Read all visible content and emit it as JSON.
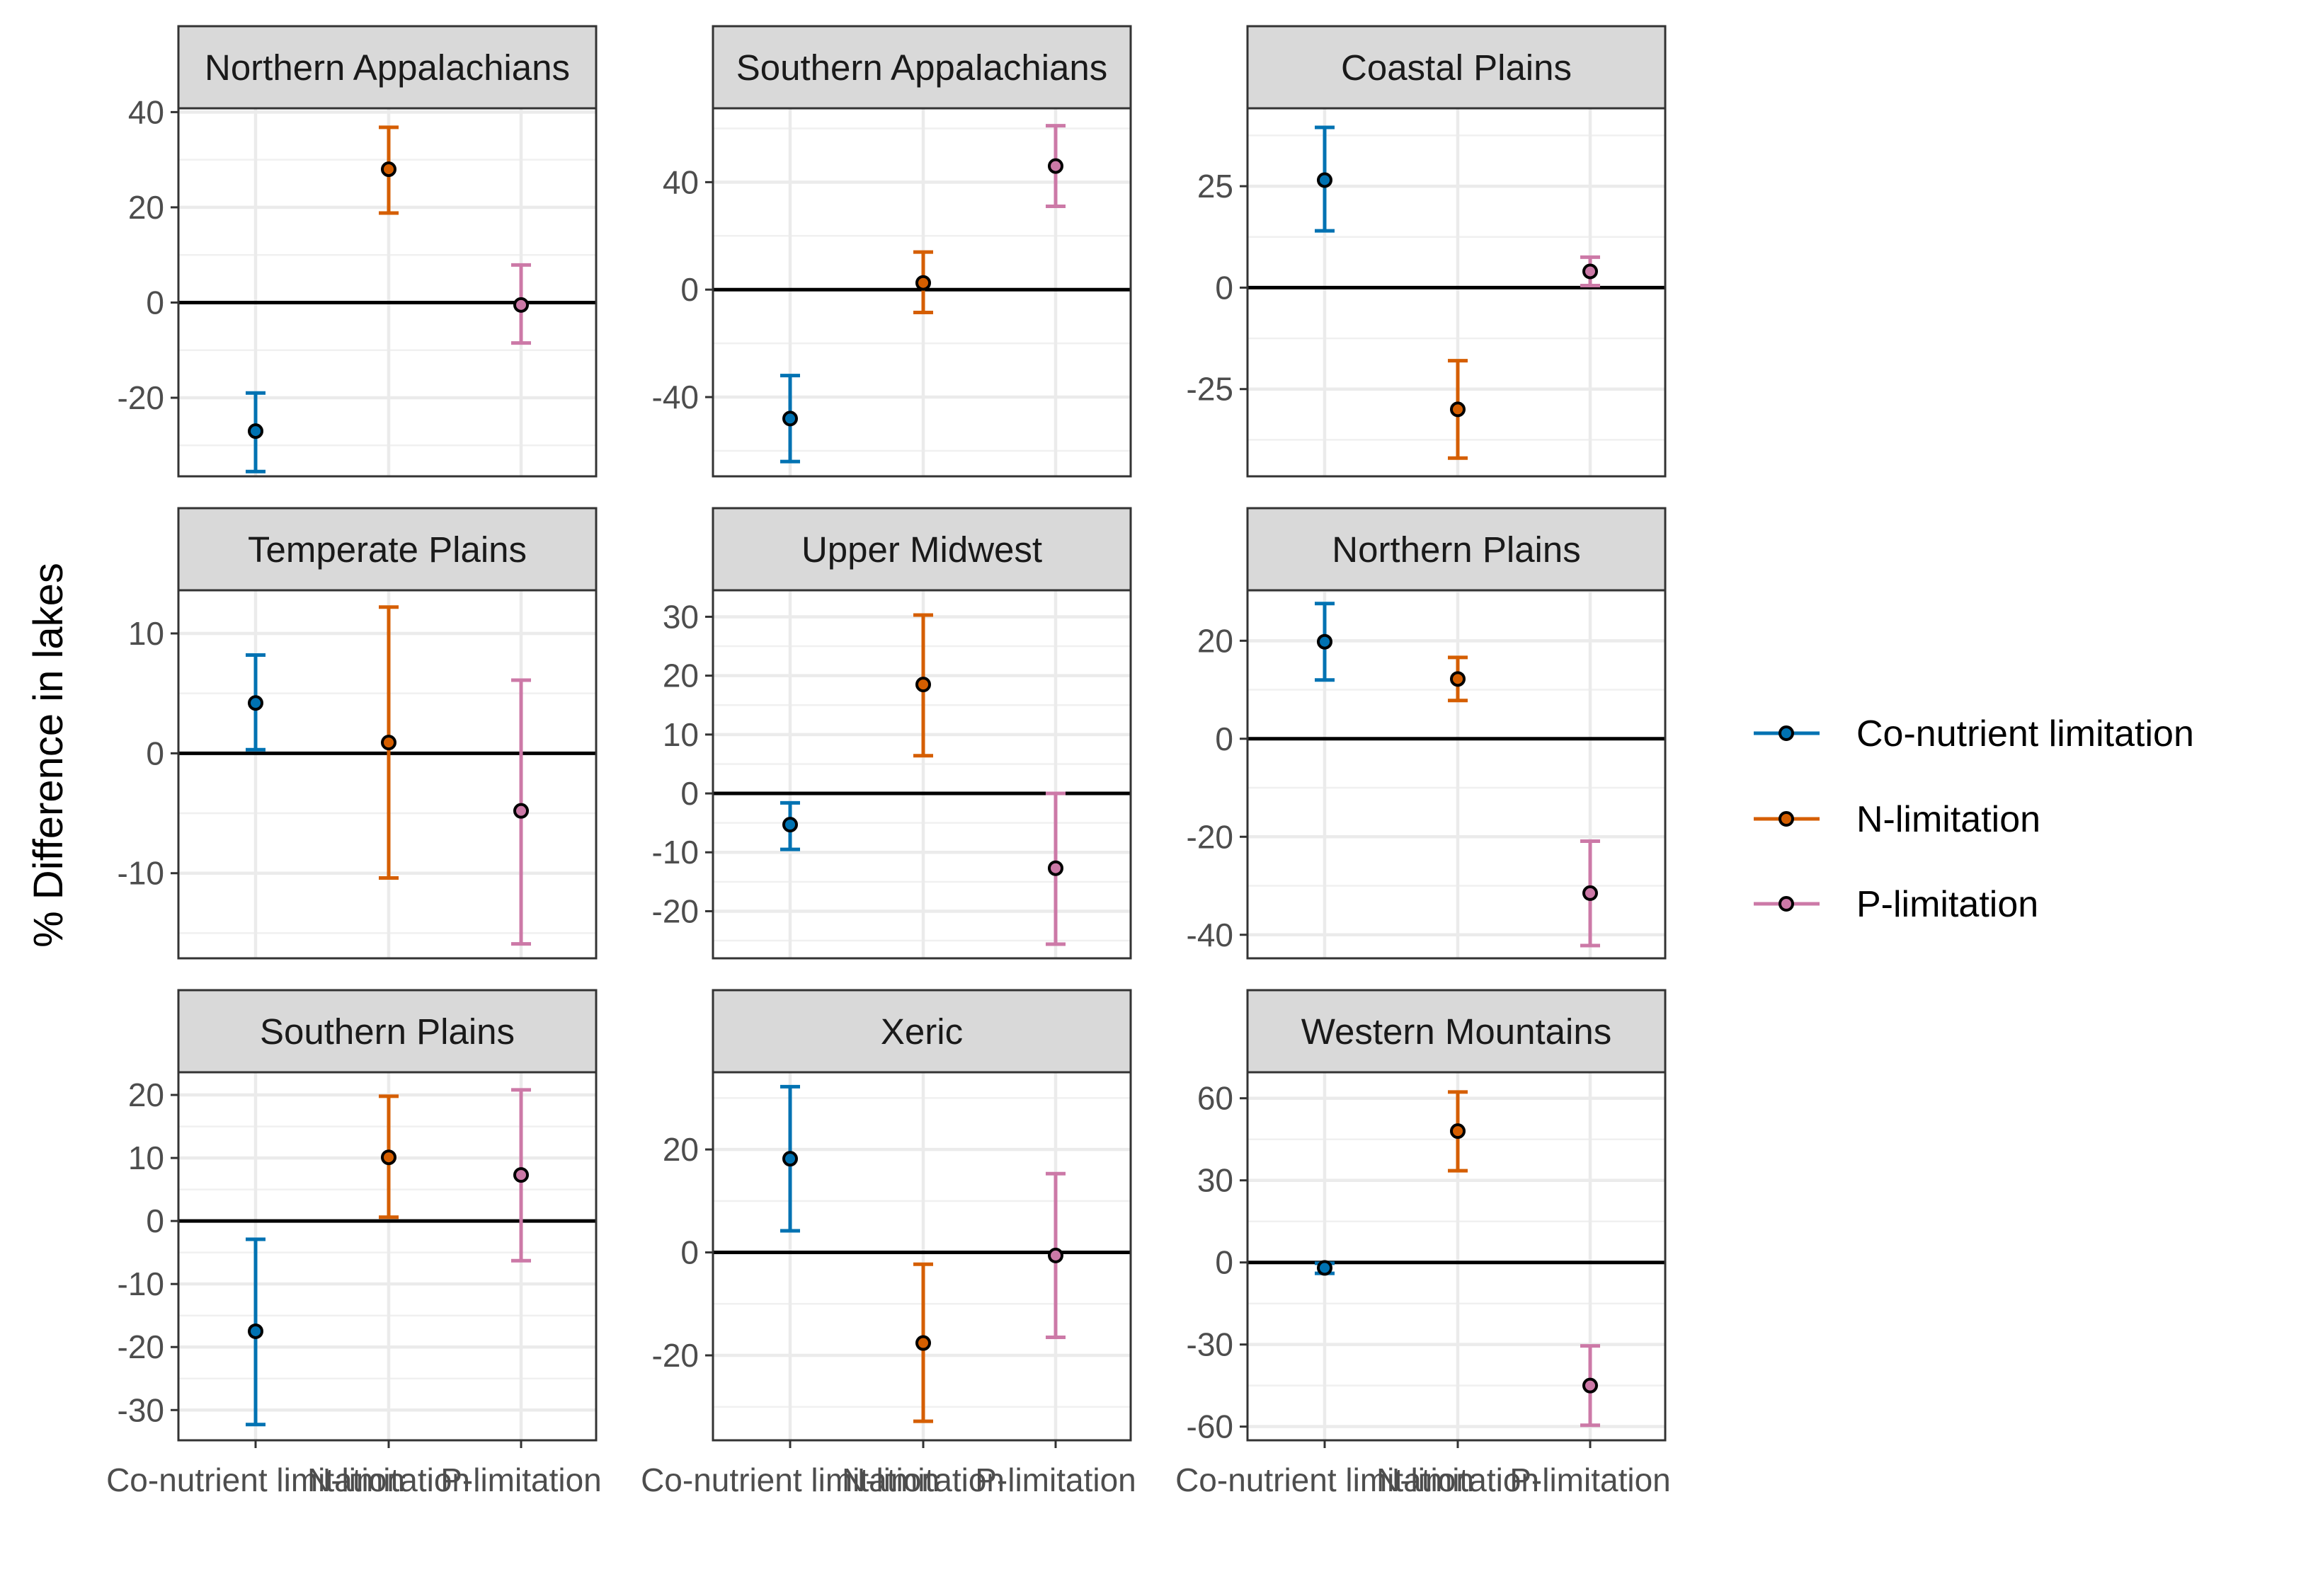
{
  "chart_data": {
    "type": "scatter",
    "ylabel": "% Difference in lakes",
    "categories": [
      "Co-nutrient limitation",
      "N-limitation",
      "P-limitation"
    ],
    "legend": {
      "placement": "right",
      "entries": [
        {
          "label": "Co-nutrient limitation",
          "color": "#0072B2"
        },
        {
          "label": "N-limitation",
          "color": "#D55E00"
        },
        {
          "label": "P-limitation",
          "color": "#CC79A7"
        }
      ]
    },
    "panels": [
      {
        "title": "Northern Appalachians",
        "ylim": [
          -36.5,
          40.8
        ],
        "yticks": [
          -20,
          0,
          20,
          40
        ],
        "tick_labels": [
          "-20",
          "0",
          "20",
          "40"
        ],
        "points": [
          {
            "category": "Co-nutrient limitation",
            "value": -27,
            "lower": -35.5,
            "upper": -19
          },
          {
            "category": "N-limitation",
            "value": 28,
            "lower": 18.8,
            "upper": 36.8
          },
          {
            "category": "P-limitation",
            "value": -0.5,
            "lower": -8.5,
            "upper": 7.9
          }
        ]
      },
      {
        "title": "Southern Appalachians",
        "ylim": [
          -69.5,
          67.5
        ],
        "yticks": [
          -40,
          0,
          40
        ],
        "tick_labels": [
          "-40",
          "0",
          "40"
        ],
        "points": [
          {
            "category": "Co-nutrient limitation",
            "value": -48,
            "lower": -64,
            "upper": -32
          },
          {
            "category": "N-limitation",
            "value": 2.5,
            "lower": -8.5,
            "upper": 14
          },
          {
            "category": "P-limitation",
            "value": 46,
            "lower": 31,
            "upper": 61
          }
        ]
      },
      {
        "title": "Coastal Plains",
        "ylim": [
          -46.5,
          44.2
        ],
        "yticks": [
          -25,
          0,
          25
        ],
        "tick_labels": [
          "-25",
          "0",
          "25"
        ],
        "points": [
          {
            "category": "Co-nutrient limitation",
            "value": 26.5,
            "lower": 14,
            "upper": 39.5
          },
          {
            "category": "N-limitation",
            "value": -30,
            "lower": -42,
            "upper": -18
          },
          {
            "category": "P-limitation",
            "value": 4,
            "lower": 0.5,
            "upper": 7.5
          }
        ]
      },
      {
        "title": "Temperate Plains",
        "ylim": [
          -17.1,
          13.6
        ],
        "yticks": [
          -10,
          0,
          10
        ],
        "tick_labels": [
          "-10",
          "0",
          "10"
        ],
        "points": [
          {
            "category": "Co-nutrient limitation",
            "value": 4.2,
            "lower": 0.3,
            "upper": 8.2
          },
          {
            "category": "N-limitation",
            "value": 0.9,
            "lower": -10.4,
            "upper": 12.2
          },
          {
            "category": "P-limitation",
            "value": -4.8,
            "lower": -15.9,
            "upper": 6.1
          }
        ]
      },
      {
        "title": "Upper Midwest",
        "ylim": [
          -28,
          34.5
        ],
        "yticks": [
          -20,
          -10,
          0,
          10,
          20,
          30
        ],
        "tick_labels": [
          "-20",
          "-10",
          "0",
          "10",
          "20",
          "30"
        ],
        "points": [
          {
            "category": "Co-nutrient limitation",
            "value": -5.3,
            "lower": -9.5,
            "upper": -1.6
          },
          {
            "category": "N-limitation",
            "value": 18.5,
            "lower": 6.4,
            "upper": 30.3
          },
          {
            "category": "P-limitation",
            "value": -12.7,
            "lower": -25.6,
            "upper": 0
          }
        ]
      },
      {
        "title": "Northern Plains",
        "ylim": [
          -44.8,
          30.3
        ],
        "yticks": [
          -40,
          -20,
          0,
          20
        ],
        "tick_labels": [
          "-40",
          "-20",
          "0",
          "20"
        ],
        "points": [
          {
            "category": "Co-nutrient limitation",
            "value": 19.8,
            "lower": 12,
            "upper": 27.6
          },
          {
            "category": "N-limitation",
            "value": 12.2,
            "lower": 7.8,
            "upper": 16.6
          },
          {
            "category": "P-limitation",
            "value": -31.5,
            "lower": -42.2,
            "upper": -20.9
          }
        ]
      },
      {
        "title": "Southern Plains",
        "ylim": [
          -34.8,
          23.6
        ],
        "yticks": [
          -30,
          -20,
          -10,
          0,
          10,
          20
        ],
        "tick_labels": [
          "-30",
          "-20",
          "-10",
          "0",
          "10",
          "20"
        ],
        "points": [
          {
            "category": "Co-nutrient limitation",
            "value": -17.5,
            "lower": -32.3,
            "upper": -2.9
          },
          {
            "category": "N-limitation",
            "value": 10.1,
            "lower": 0.6,
            "upper": 19.8
          },
          {
            "category": "P-limitation",
            "value": 7.3,
            "lower": -6.3,
            "upper": 20.8
          }
        ]
      },
      {
        "title": "Xeric",
        "ylim": [
          -36.5,
          35
        ],
        "yticks": [
          -20,
          0,
          20
        ],
        "tick_labels": [
          "-20",
          "0",
          "20"
        ],
        "points": [
          {
            "category": "Co-nutrient limitation",
            "value": 18.2,
            "lower": 4.2,
            "upper": 32.2
          },
          {
            "category": "N-limitation",
            "value": -17.6,
            "lower": -32.8,
            "upper": -2.3
          },
          {
            "category": "P-limitation",
            "value": -0.6,
            "lower": -16.5,
            "upper": 15.3
          }
        ]
      },
      {
        "title": "Western Mountains",
        "ylim": [
          -65,
          69.5
        ],
        "yticks": [
          -60,
          -30,
          0,
          30,
          60
        ],
        "tick_labels": [
          "-60",
          "-30",
          "0",
          "30",
          "60"
        ],
        "points": [
          {
            "category": "Co-nutrient limitation",
            "value": -2,
            "lower": -4,
            "upper": -0.3
          },
          {
            "category": "N-limitation",
            "value": 48,
            "lower": 33.5,
            "upper": 62.3
          },
          {
            "category": "P-limitation",
            "value": -45,
            "lower": -59.5,
            "upper": -30.5
          }
        ]
      }
    ]
  }
}
